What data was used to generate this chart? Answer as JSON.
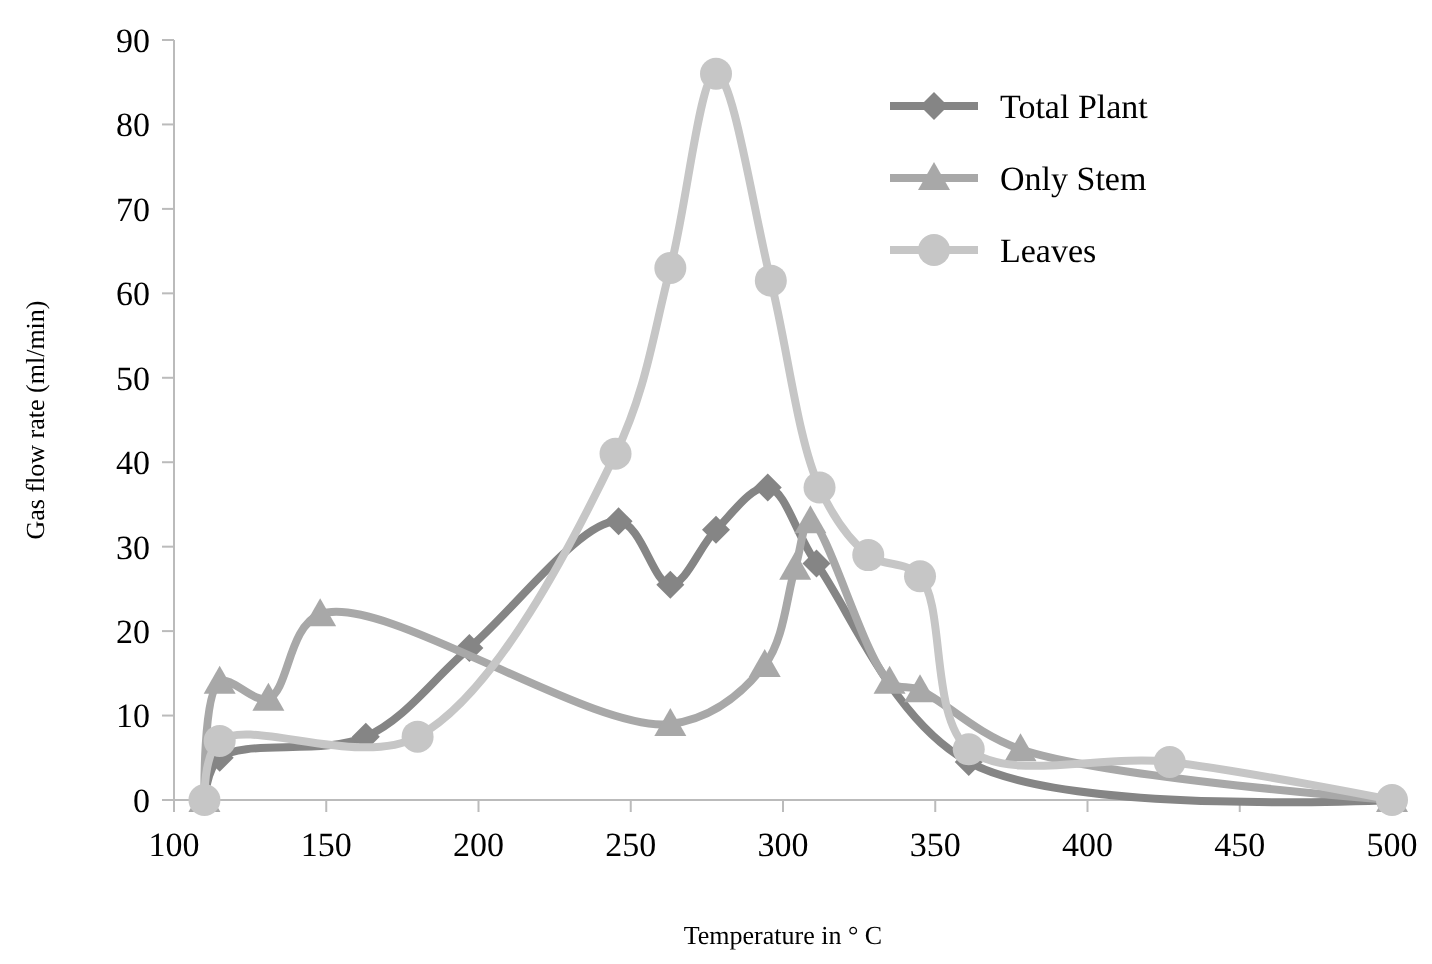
{
  "chart_data": {
    "type": "line",
    "xlabel": "Temperature in ° C",
    "ylabel": "Gas flow rate (ml/min)",
    "xlim": [
      100,
      500
    ],
    "xticks": [
      100,
      150,
      200,
      250,
      300,
      350,
      400,
      450,
      500
    ],
    "ylim": [
      0,
      90
    ],
    "yticks": [
      0,
      10,
      20,
      30,
      40,
      50,
      60,
      70,
      80,
      90
    ],
    "grid": false,
    "legend": "top right",
    "series": [
      {
        "name": "Total Plant",
        "color": "#858585",
        "marker": "diamond",
        "x": [
          110,
          115,
          163,
          197,
          246,
          263,
          278,
          295,
          311,
          361,
          500
        ],
        "values": [
          0,
          5,
          7.5,
          18,
          33,
          25.5,
          32,
          37,
          28,
          4.5,
          0
        ]
      },
      {
        "name": "Only Stem",
        "color": "#a8a8a8",
        "marker": "triangle",
        "x": [
          110,
          115,
          131,
          148,
          263,
          294,
          304,
          309,
          335,
          345,
          378,
          500
        ],
        "values": [
          0,
          14,
          12,
          22,
          9,
          16,
          27.5,
          33,
          14,
          13,
          6,
          0
        ]
      },
      {
        "name": "Leaves",
        "color": "#c6c6c6",
        "marker": "circle",
        "x": [
          110,
          115,
          180,
          245,
          263,
          278,
          296,
          312,
          328,
          345,
          361,
          427,
          500
        ],
        "values": [
          0,
          7,
          7.5,
          41,
          63,
          86,
          61.5,
          37,
          29,
          26.5,
          6,
          4.5,
          0
        ]
      }
    ]
  }
}
